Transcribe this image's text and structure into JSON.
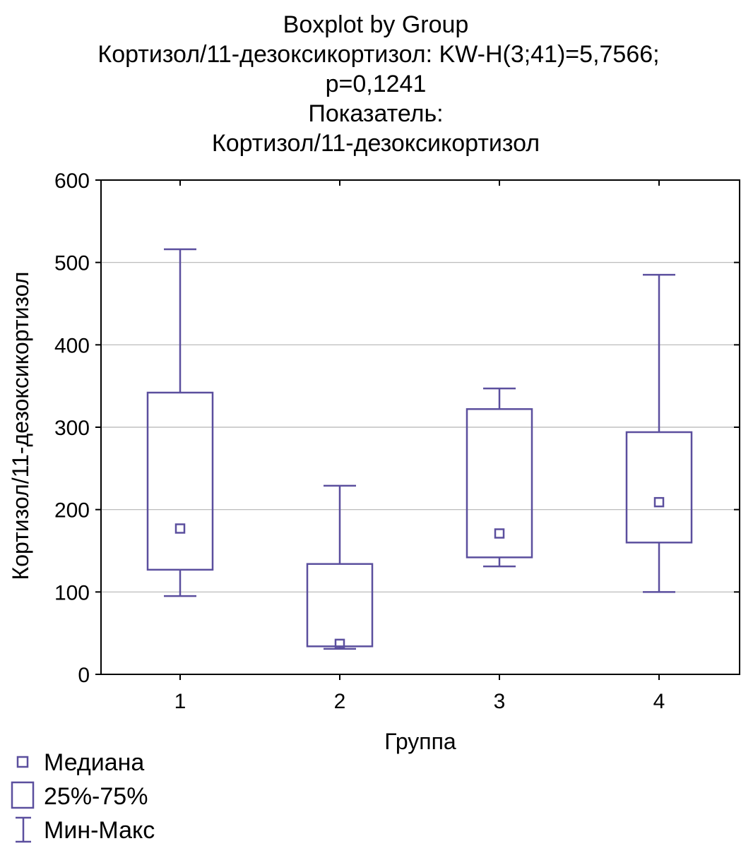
{
  "chart_data": {
    "type": "boxplot",
    "title_lines": [
      "Boxplot by Group",
      "Кортизол/11-дезоксикортизол: KW-H(3;41)=5,7566;",
      "p=0,1241",
      "Показатель:",
      "Кортизол/11-дезоксикортизол"
    ],
    "xlabel": "Группа",
    "ylabel": "Кортизол/11-дезоксикортизол",
    "ylim": [
      0,
      600
    ],
    "yticks": [
      0,
      100,
      200,
      300,
      400,
      500,
      600
    ],
    "grid": true,
    "categories": [
      "1",
      "2",
      "3",
      "4"
    ],
    "groups": [
      {
        "name": "1",
        "min": 95,
        "q1": 127,
        "median": 177,
        "q3": 342,
        "max": 516
      },
      {
        "name": "2",
        "min": 31,
        "q1": 34,
        "median": 37,
        "q3": 134,
        "max": 229
      },
      {
        "name": "3",
        "min": 131,
        "q1": 142,
        "median": 171,
        "q3": 322,
        "max": 347
      },
      {
        "name": "4",
        "min": 100,
        "q1": 160,
        "median": 209,
        "q3": 294,
        "max": 485
      }
    ],
    "legend": {
      "position": "bottom-left",
      "entries": [
        {
          "symbol": "median",
          "label": "Медиана"
        },
        {
          "symbol": "box",
          "label": "25%-75%"
        },
        {
          "symbol": "whisker",
          "label": "Мин-Макс"
        }
      ]
    },
    "colors": {
      "box": "#5b4f9e",
      "grid": "#b4b4b4",
      "axis": "#000000"
    }
  }
}
